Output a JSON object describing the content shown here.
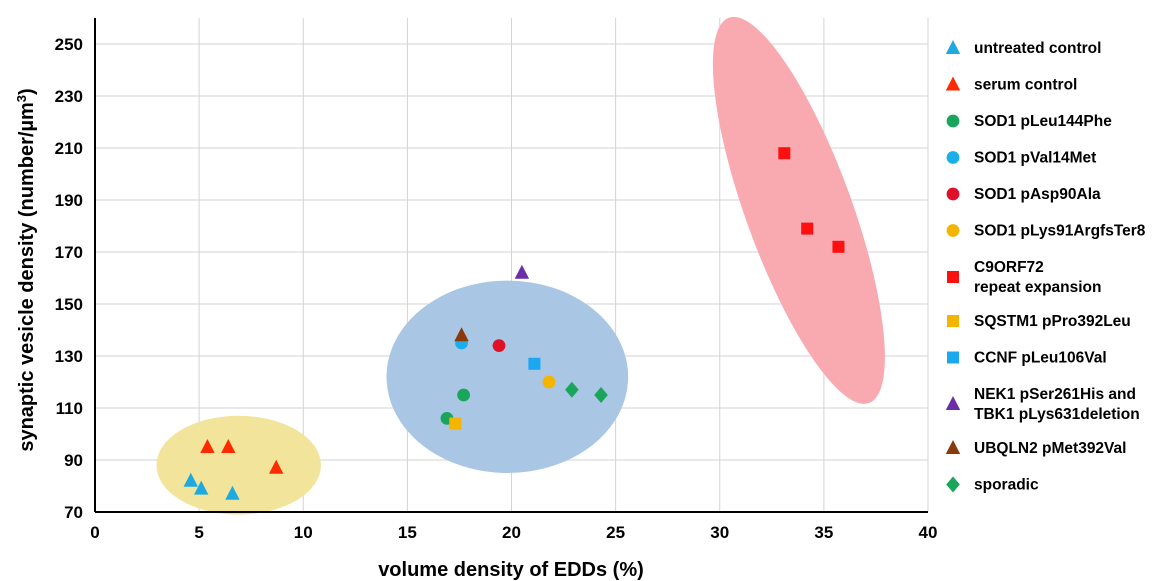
{
  "chart_data": {
    "type": "scatter",
    "xlabel": "volume density of EDDs (%)",
    "ylabel": "synaptic vesicle density (number/µm³)",
    "xlim": [
      0,
      40
    ],
    "ylim": [
      70,
      260
    ],
    "x_ticks": [
      0,
      5,
      10,
      15,
      20,
      25,
      30,
      35,
      40
    ],
    "y_ticks": [
      70,
      90,
      110,
      130,
      150,
      170,
      190,
      210,
      230,
      250
    ],
    "grid": true,
    "legend_position": "right",
    "series": [
      {
        "name": "untreated control",
        "marker": "triangle",
        "color": "#1eaae0",
        "points": [
          [
            4.6,
            82
          ],
          [
            5.1,
            79
          ],
          [
            6.6,
            77
          ]
        ]
      },
      {
        "name": "serum control",
        "marker": "triangle",
        "color": "#ff2a00",
        "points": [
          [
            5.4,
            95
          ],
          [
            6.4,
            95
          ],
          [
            8.7,
            87
          ]
        ]
      },
      {
        "name": "SOD1 pLeu144Phe",
        "marker": "circle",
        "color": "#1aa65a",
        "points": [
          [
            17.7,
            115
          ],
          [
            16.9,
            106
          ]
        ]
      },
      {
        "name": "SOD1 pVal14Met",
        "marker": "circle",
        "color": "#1aaeea",
        "points": [
          [
            17.6,
            135
          ]
        ]
      },
      {
        "name": "SOD1 pAsp90Ala",
        "marker": "circle",
        "color": "#e0102a",
        "points": [
          [
            19.4,
            134
          ]
        ]
      },
      {
        "name": "SOD1 pLys91ArgfsTer8",
        "marker": "circle",
        "color": "#f5b400",
        "points": [
          [
            21.8,
            120
          ]
        ]
      },
      {
        "name": "C9ORF72\nrepeat expansion",
        "marker": "square",
        "color": "#ff1010",
        "points": [
          [
            33.1,
            208
          ],
          [
            34.2,
            179
          ],
          [
            35.7,
            172
          ]
        ]
      },
      {
        "name": "SQSTM1 pPro392Leu",
        "marker": "square",
        "color": "#f5b400",
        "points": [
          [
            17.3,
            104
          ]
        ]
      },
      {
        "name": "CCNF pLeu106Val",
        "marker": "square",
        "color": "#1aa8f0",
        "points": [
          [
            21.1,
            127
          ]
        ]
      },
      {
        "name": "NEK1 pSer261His and\nTBK1 pLys631deletion",
        "marker": "triangle",
        "color": "#6a2fa8",
        "points": [
          [
            20.5,
            162
          ]
        ]
      },
      {
        "name": "UBQLN2 pMet392Val",
        "marker": "triangle",
        "color": "#8a3a0a",
        "points": [
          [
            17.6,
            138
          ]
        ]
      },
      {
        "name": "sporadic",
        "marker": "diamond",
        "color": "#1aa65a",
        "points": [
          [
            22.9,
            117
          ],
          [
            24.3,
            115
          ]
        ]
      }
    ],
    "clusters": [
      {
        "color": "#f2e49a",
        "cx": 6.9,
        "cy": 88,
        "rx": 3.95,
        "ry": 19,
        "rotate": 0
      },
      {
        "color": "#a9c6e4",
        "cx": 19.8,
        "cy": 122,
        "rx": 5.8,
        "ry": 37,
        "rotate": 0
      },
      {
        "color": "#f9aab0",
        "cx": 33.8,
        "cy": 186,
        "rx": 2.4,
        "ry": 100,
        "rotate": -20
      }
    ]
  }
}
